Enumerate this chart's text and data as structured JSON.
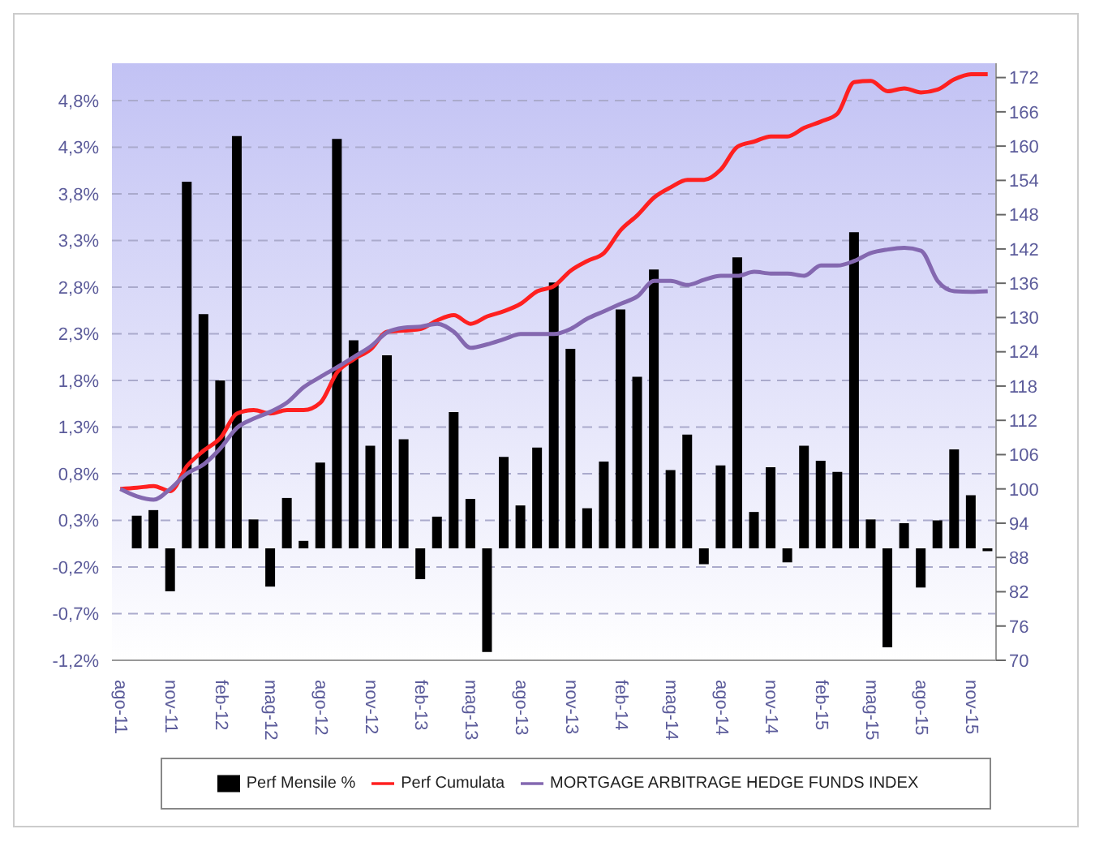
{
  "chart_data": {
    "type": "bar",
    "categories": [
      "ago-11",
      null,
      null,
      "nov-11",
      null,
      null,
      "feb-12",
      null,
      null,
      "mag-12",
      null,
      null,
      "ago-12",
      null,
      null,
      "nov-12",
      null,
      null,
      "feb-13",
      null,
      null,
      "mag-13",
      null,
      null,
      "ago-13",
      null,
      null,
      "nov-13",
      null,
      null,
      "feb-14",
      null,
      null,
      "mag-14",
      null,
      null,
      "ago-14",
      null,
      null,
      "nov-14",
      null,
      null,
      "feb-15",
      null,
      null,
      "mag-15",
      null,
      null,
      "ago-15",
      null,
      null,
      "nov-15",
      null
    ],
    "series": [
      {
        "name": "Perf Mensile %",
        "color": "#000000",
        "values": [
          0,
          0.35,
          0.41,
          -0.46,
          3.93,
          2.51,
          1.8,
          4.42,
          0.31,
          -0.41,
          0.54,
          0.08,
          0.92,
          4.39,
          2.23,
          1.1,
          2.07,
          1.17,
          -0.33,
          0.34,
          1.46,
          0.53,
          -1.11,
          0.98,
          0.46,
          1.08,
          2.85,
          2.14,
          0.43,
          0.93,
          2.56,
          1.84,
          2.99,
          0.84,
          1.22,
          -0.17,
          0.89,
          3.12,
          0.39,
          0.87,
          -0.15,
          1.1,
          0.94,
          0.82,
          3.39,
          0.31,
          -1.06,
          0.27,
          -0.42,
          0.3,
          1.06,
          0.57,
          -0.03
        ]
      },
      {
        "name": "Perf Cumulata",
        "type": "line",
        "axis": "y2",
        "color": "#ff2020",
        "values": [
          100,
          100.2,
          100.5,
          99.6,
          104,
          106.7,
          108.9,
          113.2,
          113.8,
          113.2,
          113.8,
          113.8,
          115.1,
          120.4,
          122.7,
          124.4,
          127.5,
          127.7,
          128,
          129.5,
          130.4,
          128.9,
          130.2,
          131.1,
          132.4,
          134.6,
          135.5,
          138.2,
          139.9,
          141.3,
          145.3,
          147.9,
          151,
          152.8,
          154.1,
          154.1,
          155.9,
          159.9,
          160.8,
          161.7,
          161.7,
          163.2,
          164.3,
          165.7,
          171.2,
          171.4,
          169.6,
          170.1,
          169.4,
          169.9,
          171.7,
          172.6,
          172.6
        ]
      },
      {
        "name": "MORTGAGE ARBITRAGE HEDGE FUNDS INDEX",
        "type": "line",
        "axis": "y2",
        "color": "#8468b0",
        "values": [
          100,
          98.7,
          98.1,
          100,
          102.7,
          104.3,
          107.1,
          110.7,
          112.3,
          113.5,
          115.1,
          117.8,
          119.6,
          121.3,
          123.1,
          124.9,
          127.4,
          128.2,
          128.4,
          128.9,
          127.5,
          124.7,
          125.3,
          126.2,
          127.1,
          127.1,
          127.1,
          128,
          129.8,
          131.1,
          132.4,
          133.7,
          136.4,
          136.4,
          135.7,
          136.6,
          137.3,
          137.3,
          138,
          137.7,
          137.7,
          137.3,
          139.1,
          139.1,
          139.9,
          141.3,
          141.9,
          142.2,
          141.7,
          136.4,
          134.6,
          134.5,
          134.6
        ]
      }
    ],
    "ylim": [
      -1.2,
      5.2
    ],
    "yticks": [
      {
        "value": -1.2,
        "label": "-1,2%"
      },
      {
        "value": -0.7,
        "label": "-0,7%"
      },
      {
        "value": -0.2,
        "label": "-0,2%"
      },
      {
        "value": 0.3,
        "label": "0,3%"
      },
      {
        "value": 0.8,
        "label": "0,8%"
      },
      {
        "value": 1.3,
        "label": "1,3%"
      },
      {
        "value": 1.8,
        "label": "1,8%"
      },
      {
        "value": 2.3,
        "label": "2,3%"
      },
      {
        "value": 2.8,
        "label": "2,8%"
      },
      {
        "value": 3.3,
        "label": "3,3%"
      },
      {
        "value": 3.8,
        "label": "3,8%"
      },
      {
        "value": 4.3,
        "label": "4,3%"
      },
      {
        "value": 4.8,
        "label": "4,8%"
      }
    ],
    "y2lim": [
      70,
      174.5
    ],
    "y2ticks": [
      70,
      76,
      82,
      88,
      94,
      100,
      106,
      112,
      118,
      124,
      130,
      136,
      142,
      148,
      154,
      160,
      166,
      172
    ],
    "grid": "y",
    "legend": "bottom"
  }
}
